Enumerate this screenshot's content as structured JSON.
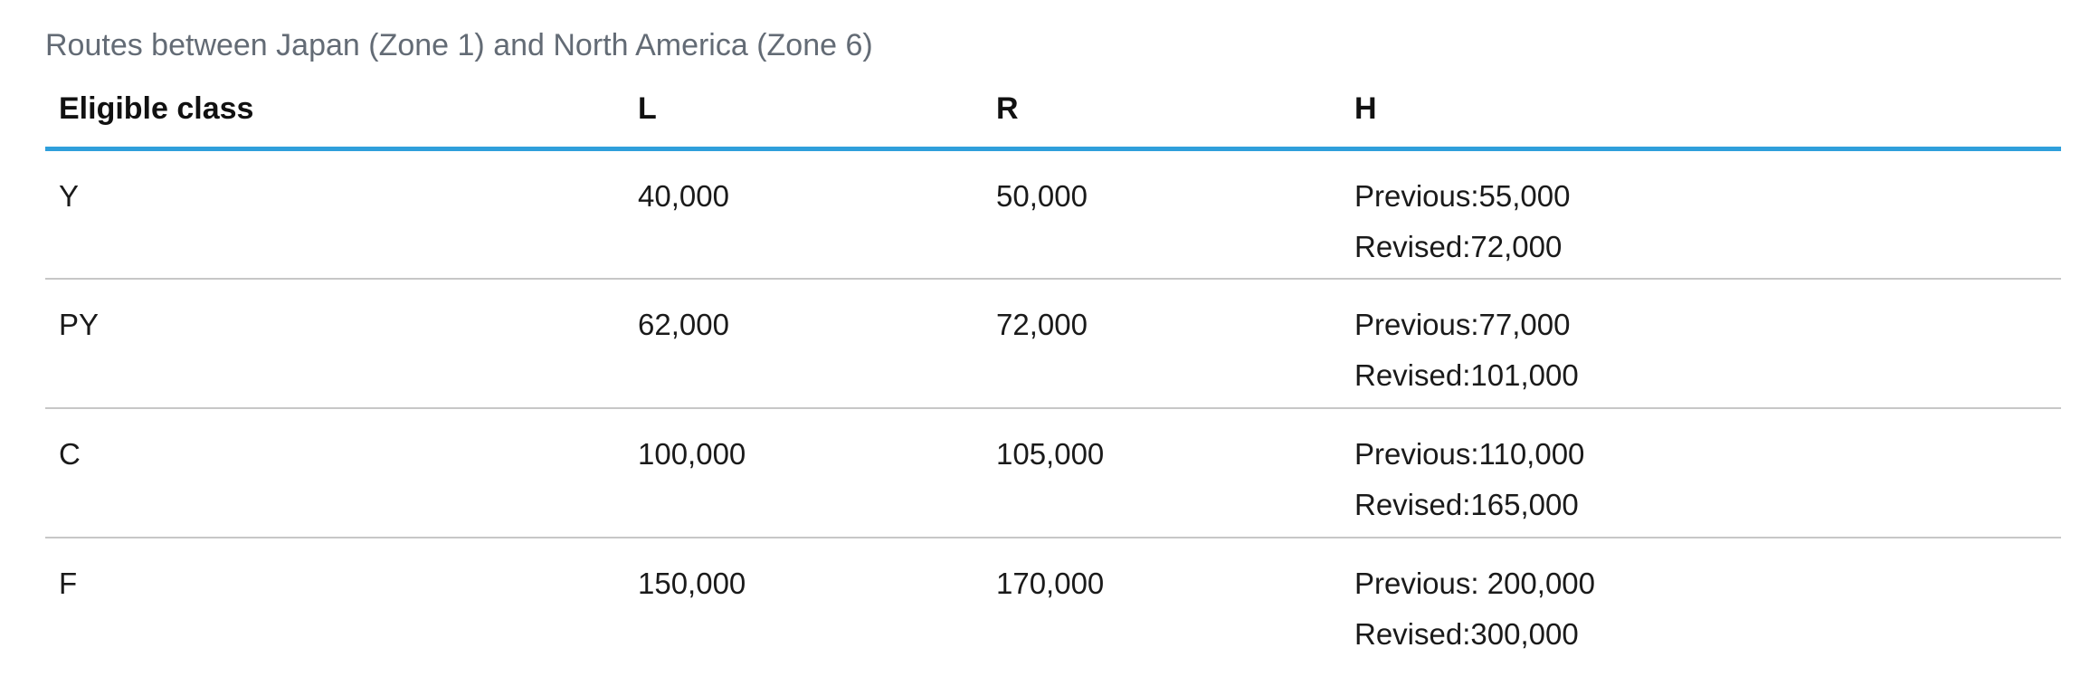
{
  "caption": "Routes between Japan (Zone 1) and North America (Zone 6)",
  "headers": [
    "Eligible class",
    "L",
    "R",
    "H"
  ],
  "rows": [
    {
      "class": "Y",
      "L": "40,000",
      "R": "50,000",
      "H_previous": "Previous:55,000",
      "H_revised": "Revised:72,000"
    },
    {
      "class": "PY",
      "L": "62,000",
      "R": "72,000",
      "H_previous": "Previous:77,000",
      "H_revised": "Revised:101,000"
    },
    {
      "class": "C",
      "L": "100,000",
      "R": "105,000",
      "H_previous": "Previous:110,000",
      "H_revised": "Revised:165,000"
    },
    {
      "class": "F",
      "L": "150,000",
      "R": "170,000",
      "H_previous": "Previous: 200,000",
      "H_revised": "Revised:300,000"
    }
  ],
  "colors": {
    "header_rule": "#2f9fdb",
    "row_rule": "#c7c7c7",
    "caption_text": "#636b75"
  }
}
